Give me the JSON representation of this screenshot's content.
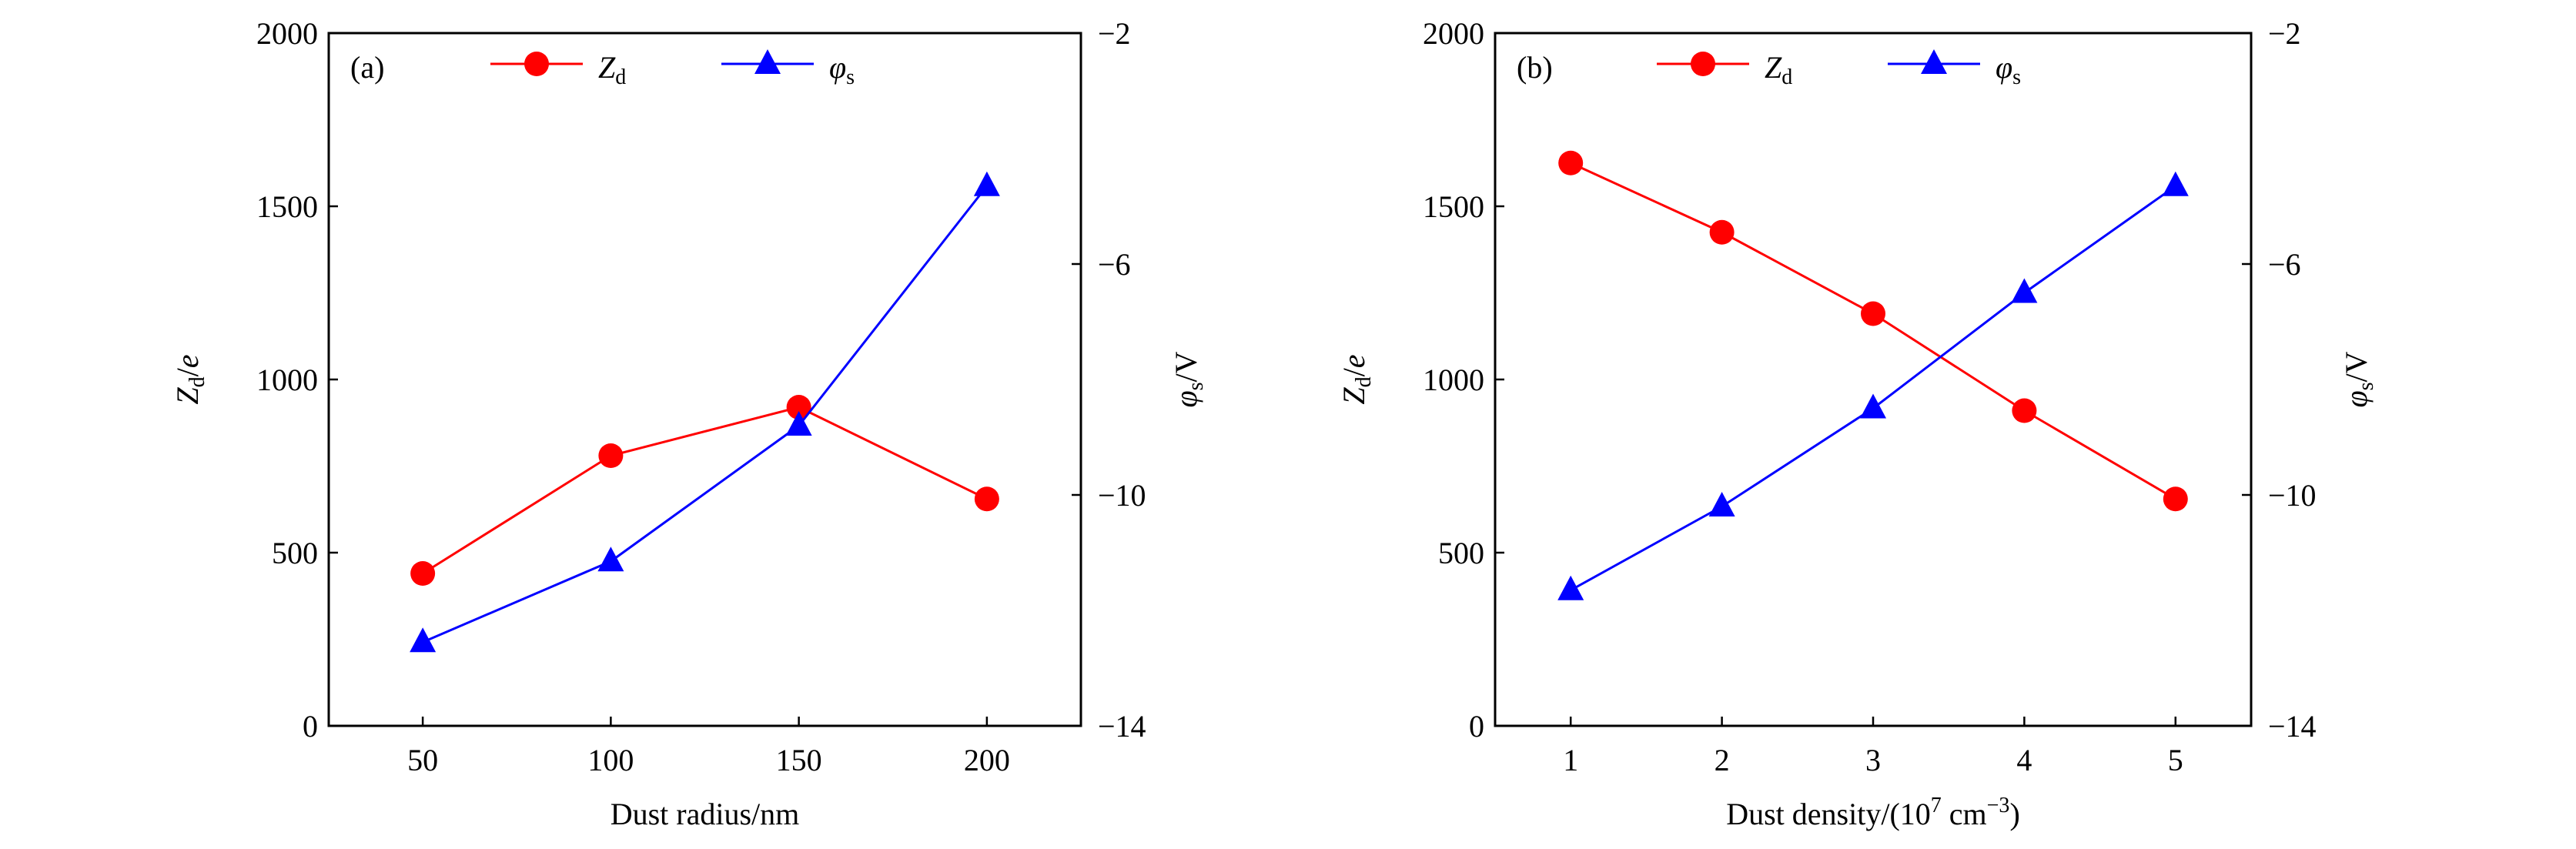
{
  "chart_data": [
    {
      "type": "line",
      "panel_label": "(a)",
      "xlabel": "Dust radius/nm",
      "ylabel": {
        "main": "Z",
        "sub": "d",
        "rest": "/",
        "unit": "e"
      },
      "y2label": {
        "main": "φ",
        "sub": "s",
        "rest": "/V"
      },
      "x": [
        50,
        100,
        150,
        200
      ],
      "xticks": [
        "50",
        "100",
        "150",
        "200"
      ],
      "xlim": [
        25,
        225
      ],
      "ylim": [
        0,
        2000
      ],
      "yticks": [
        "0",
        "500",
        "1000",
        "1500",
        "2000"
      ],
      "y2lim": [
        -14,
        -2
      ],
      "y2ticks": [
        "−14",
        "−10",
        "−6",
        "−2"
      ],
      "legend_placement": "top",
      "grid": false,
      "series": [
        {
          "name": {
            "main": "Z",
            "sub": "d"
          },
          "axis": "left",
          "marker": "circle",
          "color": "#ff0000",
          "values": [
            440,
            780,
            920,
            655
          ]
        },
        {
          "name": {
            "main": "φ",
            "sub": "s"
          },
          "axis": "right",
          "marker": "triangle",
          "color": "#0000ff",
          "values": [
            -12.55,
            -11.15,
            -8.8,
            -4.65
          ]
        }
      ]
    },
    {
      "type": "line",
      "panel_label": "(b)",
      "xlabel": "Dust density/(10",
      "xlabel_sup": "7",
      "xlabel_unit": " cm",
      "xlabel_unit_sup": "−3",
      "xlabel_close": ")",
      "ylabel": {
        "main": "Z",
        "sub": "d",
        "rest": "/",
        "unit": "e"
      },
      "y2label": {
        "main": "φ",
        "sub": "s",
        "rest": "/V"
      },
      "x": [
        1,
        2,
        3,
        4,
        5
      ],
      "xticks": [
        "1",
        "2",
        "3",
        "4",
        "5"
      ],
      "xlim": [
        0.5,
        5.5
      ],
      "ylim": [
        0,
        2000
      ],
      "yticks": [
        "0",
        "500",
        "1000",
        "1500",
        "2000"
      ],
      "y2lim": [
        -14,
        -2
      ],
      "y2ticks": [
        "−14",
        "−10",
        "−6",
        "−2"
      ],
      "legend_placement": "top",
      "grid": false,
      "series": [
        {
          "name": {
            "main": "Z",
            "sub": "d"
          },
          "axis": "left",
          "marker": "circle",
          "color": "#ff0000",
          "values": [
            1625,
            1425,
            1190,
            910,
            655
          ]
        },
        {
          "name": {
            "main": "φ",
            "sub": "s"
          },
          "axis": "right",
          "marker": "triangle",
          "color": "#0000ff",
          "values": [
            -11.65,
            -10.2,
            -8.5,
            -6.5,
            -4.65
          ]
        }
      ]
    }
  ]
}
